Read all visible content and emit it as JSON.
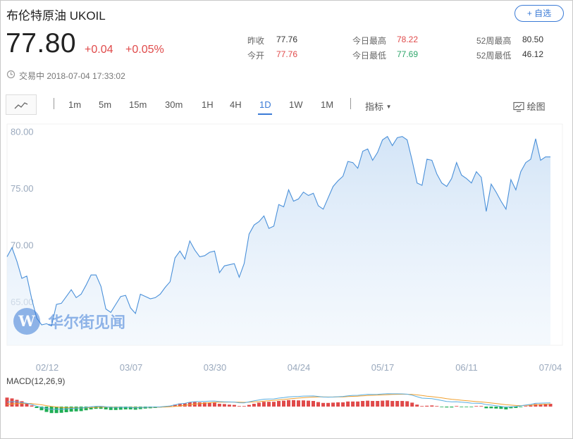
{
  "header": {
    "title": "布伦特原油  UKOIL",
    "follow_label": "+ 自选",
    "price": "77.80",
    "change": "+0.04",
    "change_pct": "+0.05%",
    "status_time": "交易中 2018-07-04 17:33:02"
  },
  "stats": [
    {
      "label": "昨收",
      "value": "77.76",
      "color": "#333333"
    },
    {
      "label": "今开",
      "value": "77.76",
      "color": "#e04a4a"
    },
    {
      "label": "今日最高",
      "value": "78.22",
      "color": "#e04a4a"
    },
    {
      "label": "今日最低",
      "value": "77.69",
      "color": "#2da66a"
    },
    {
      "label": "52周最高",
      "value": "80.50",
      "color": "#333333"
    },
    {
      "label": "52周最低",
      "value": "46.12",
      "color": "#333333"
    }
  ],
  "toolbar": {
    "periods": [
      "1m",
      "5m",
      "15m",
      "30m",
      "1H",
      "4H",
      "1D",
      "1W",
      "1M"
    ],
    "active": "1D",
    "indicator_label": "指标",
    "draw_label": "绘图"
  },
  "watermark": "华尔街见闻",
  "macd_label": "MACD(12,26,9)",
  "colors": {
    "accent": "#3b7bd6",
    "up": "#e04a4a",
    "down": "#1fae55",
    "line": "#4a90d9"
  },
  "chart_data": {
    "type": "area",
    "x_ticks": [
      "02/12",
      "03/07",
      "03/30",
      "04/24",
      "05/17",
      "06/11",
      "07/04"
    ],
    "y_ticks": [
      "65.00",
      "70.00",
      "75.00",
      "80.00"
    ],
    "ylim": [
      61.2,
      80.7
    ],
    "values": [
      69.0,
      69.8,
      68.6,
      67.1,
      67.3,
      65.3,
      63.6,
      63.0,
      63.1,
      62.9,
      64.8,
      64.9,
      65.5,
      66.1,
      65.4,
      65.7,
      66.5,
      67.4,
      67.4,
      66.4,
      64.4,
      64.1,
      64.8,
      65.5,
      65.6,
      64.5,
      64.0,
      65.7,
      65.5,
      65.3,
      65.4,
      65.7,
      66.3,
      66.8,
      68.9,
      69.5,
      68.8,
      70.4,
      69.6,
      69.0,
      69.1,
      69.4,
      69.5,
      67.6,
      68.2,
      68.3,
      68.4,
      67.2,
      68.4,
      71.0,
      71.8,
      72.1,
      72.6,
      71.5,
      71.7,
      73.6,
      73.4,
      74.9,
      73.9,
      74.1,
      74.7,
      74.4,
      74.6,
      73.5,
      73.2,
      74.2,
      75.2,
      75.7,
      76.1,
      77.4,
      77.3,
      76.8,
      78.3,
      78.5,
      77.5,
      78.2,
      79.3,
      79.6,
      78.8,
      79.5,
      79.6,
      79.3,
      77.5,
      75.5,
      75.3,
      77.6,
      77.5,
      76.3,
      75.5,
      75.2,
      75.9,
      77.3,
      76.2,
      75.9,
      75.5,
      76.5,
      76.0,
      73.0,
      75.4,
      74.7,
      73.9,
      73.2,
      75.8,
      74.9,
      76.5,
      77.3,
      77.6,
      79.4,
      77.5,
      77.8,
      77.8
    ],
    "macd_hist": [
      0.32,
      0.29,
      0.24,
      0.19,
      0.12,
      0.04,
      -0.05,
      -0.13,
      -0.19,
      -0.23,
      -0.23,
      -0.22,
      -0.2,
      -0.18,
      -0.17,
      -0.16,
      -0.13,
      -0.1,
      -0.08,
      -0.08,
      -0.1,
      -0.12,
      -0.12,
      -0.11,
      -0.1,
      -0.1,
      -0.11,
      -0.09,
      -0.07,
      -0.06,
      -0.05,
      -0.03,
      -0.01,
      0.02,
      0.07,
      0.11,
      0.12,
      0.15,
      0.16,
      0.15,
      0.15,
      0.14,
      0.14,
      0.1,
      0.09,
      0.07,
      0.06,
      0.02,
      0.01,
      0.06,
      0.1,
      0.14,
      0.17,
      0.17,
      0.17,
      0.2,
      0.21,
      0.23,
      0.23,
      0.22,
      0.22,
      0.21,
      0.2,
      0.16,
      0.13,
      0.13,
      0.14,
      0.15,
      0.15,
      0.18,
      0.18,
      0.18,
      0.2,
      0.21,
      0.2,
      0.2,
      0.21,
      0.22,
      0.2,
      0.2,
      0.2,
      0.19,
      0.14,
      0.07,
      0.02,
      0.03,
      0.04,
      0.02,
      -0.01,
      -0.03,
      -0.03,
      0.0,
      -0.01,
      -0.01,
      -0.02,
      0.0,
      -0.0,
      -0.06,
      -0.06,
      -0.07,
      -0.08,
      -0.1,
      -0.06,
      -0.05,
      -0.02,
      0.01,
      0.04,
      0.09,
      0.09,
      0.1,
      0.1
    ],
    "macd_dif": [
      1.0,
      1.07,
      1.03,
      0.86,
      0.73,
      0.46,
      0.11,
      -0.2,
      -0.43,
      -0.61,
      -0.59,
      -0.57,
      -0.5,
      -0.39,
      -0.35,
      -0.3,
      -0.2,
      -0.05,
      0.06,
      0.07,
      -0.04,
      -0.15,
      -0.18,
      -0.16,
      -0.14,
      -0.2,
      -0.28,
      -0.2,
      -0.15,
      -0.13,
      -0.11,
      -0.06,
      0.03,
      0.14,
      0.38,
      0.61,
      0.71,
      0.95,
      1.07,
      1.11,
      1.14,
      1.18,
      1.22,
      1.1,
      1.04,
      1.01,
      0.98,
      0.83,
      0.81,
      1.04,
      1.26,
      1.44,
      1.61,
      1.65,
      1.68,
      1.85,
      1.95,
      2.13,
      2.17,
      2.21,
      2.29,
      2.31,
      2.33,
      2.22,
      2.09,
      2.06,
      2.1,
      2.16,
      2.22,
      2.35,
      2.44,
      2.46,
      2.58,
      2.67,
      2.65,
      2.68,
      2.75,
      2.81,
      2.78,
      2.78,
      2.77,
      2.71,
      2.49,
      2.15,
      1.84,
      1.78,
      1.72,
      1.54,
      1.33,
      1.13,
      1.03,
      1.06,
      0.96,
      0.87,
      0.75,
      0.74,
      0.69,
      0.42,
      0.32,
      0.2,
      0.05,
      -0.12,
      -0.03,
      0.02,
      0.17,
      0.34,
      0.48,
      0.72,
      0.75,
      0.79,
      0.82
    ],
    "macd_dea": [
      0.45,
      0.57,
      0.64,
      0.68,
      0.69,
      0.64,
      0.53,
      0.38,
      0.22,
      0.05,
      -0.08,
      -0.18,
      -0.24,
      -0.27,
      -0.28,
      -0.28,
      -0.27,
      -0.22,
      -0.17,
      -0.12,
      -0.1,
      -0.11,
      -0.13,
      -0.14,
      -0.14,
      -0.15,
      -0.18,
      -0.18,
      -0.17,
      -0.16,
      -0.15,
      -0.13,
      -0.1,
      -0.05,
      0.04,
      0.16,
      0.27,
      0.41,
      0.54,
      0.66,
      0.75,
      0.84,
      0.92,
      0.95,
      0.97,
      0.98,
      0.98,
      0.95,
      0.92,
      0.95,
      1.01,
      1.1,
      1.2,
      1.29,
      1.37,
      1.46,
      1.56,
      1.67,
      1.77,
      1.86,
      1.94,
      2.02,
      2.08,
      2.11,
      2.11,
      2.1,
      2.1,
      2.11,
      2.13,
      2.18,
      2.23,
      2.28,
      2.34,
      2.41,
      2.46,
      2.5,
      2.55,
      2.6,
      2.64,
      2.67,
      2.7,
      2.7,
      2.66,
      2.56,
      2.41,
      2.28,
      2.17,
      2.04,
      1.9,
      1.74,
      1.6,
      1.49,
      1.39,
      1.29,
      1.18,
      1.09,
      1.01,
      0.9,
      0.78,
      0.67,
      0.54,
      0.4,
      0.32,
      0.25,
      0.23,
      0.26,
      0.3,
      0.38,
      0.46,
      0.52,
      0.58
    ]
  }
}
